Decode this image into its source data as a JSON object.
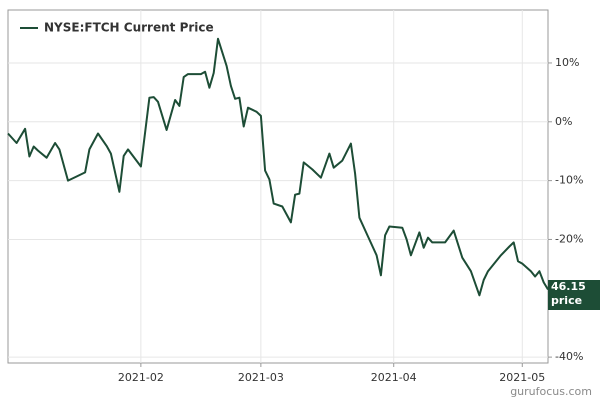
{
  "chart_data": {
    "type": "line",
    "x": [
      0,
      2,
      4,
      5,
      6,
      7,
      9,
      11,
      12,
      14,
      16,
      18,
      19,
      21,
      23,
      24,
      26,
      27,
      28,
      31,
      33,
      34,
      35,
      37,
      39,
      40,
      41,
      42,
      43,
      45,
      46,
      47,
      48,
      49,
      51,
      52,
      53,
      54,
      55,
      56,
      58,
      59,
      60,
      61,
      62,
      64,
      66,
      67,
      68,
      69,
      71,
      73,
      75,
      76,
      78,
      80,
      81,
      82,
      84,
      86,
      87,
      88,
      89,
      92,
      93,
      94,
      96,
      97,
      98,
      99,
      101,
      102,
      104,
      106,
      108,
      110,
      111,
      112,
      115,
      117,
      118,
      119,
      120,
      122,
      123,
      124,
      125,
      126
    ],
    "series": [
      {
        "name": "NYSE:FTCH Current Price",
        "color": "#1d4d36",
        "values": [
          -2.0,
          -3.6,
          -1.2,
          -5.9,
          -4.2,
          -4.9,
          -6.1,
          -3.6,
          -4.7,
          -10.0,
          -9.3,
          -8.6,
          -4.7,
          -2.0,
          -4.1,
          -5.4,
          -11.9,
          -5.8,
          -4.7,
          -7.6,
          4.1,
          4.2,
          3.4,
          -1.4,
          3.7,
          2.7,
          7.6,
          8.1,
          8.1,
          8.1,
          8.5,
          5.8,
          8.3,
          14.1,
          9.5,
          6.1,
          3.9,
          4.1,
          -0.8,
          2.4,
          1.7,
          1.0,
          -8.3,
          -9.8,
          -13.9,
          -14.4,
          -17.1,
          -12.4,
          -12.2,
          -6.9,
          -8.1,
          -9.5,
          -5.4,
          -7.8,
          -6.6,
          -3.7,
          -8.8,
          -16.3,
          -19.5,
          -22.7,
          -26.1,
          -19.3,
          -17.8,
          -18.0,
          -20.0,
          -22.7,
          -18.8,
          -21.4,
          -19.7,
          -20.5,
          -20.5,
          -20.5,
          -18.5,
          -23.1,
          -25.4,
          -29.5,
          -26.9,
          -25.4,
          -22.7,
          -21.2,
          -20.5,
          -23.7,
          -24.1,
          -25.4,
          -26.3,
          -25.4,
          -27.3,
          -28.5
        ]
      }
    ],
    "xlim": [
      0,
      126
    ],
    "xticks": [
      {
        "value": 31,
        "label": "2021-02"
      },
      {
        "value": 59,
        "label": "2021-03"
      },
      {
        "value": 90,
        "label": "2021-04"
      },
      {
        "value": 120,
        "label": "2021-05"
      }
    ],
    "ylim": [
      -41,
      19
    ],
    "yticks": [
      {
        "value": 10,
        "label": "10%"
      },
      {
        "value": 0,
        "label": "0%"
      },
      {
        "value": -10,
        "label": "-10%"
      },
      {
        "value": -20,
        "label": "-20%"
      },
      {
        "value": -40,
        "label": "-40%"
      }
    ],
    "grid": true,
    "last_value": 46.15,
    "last_label": "price",
    "watermark": "gurufocus.com"
  }
}
